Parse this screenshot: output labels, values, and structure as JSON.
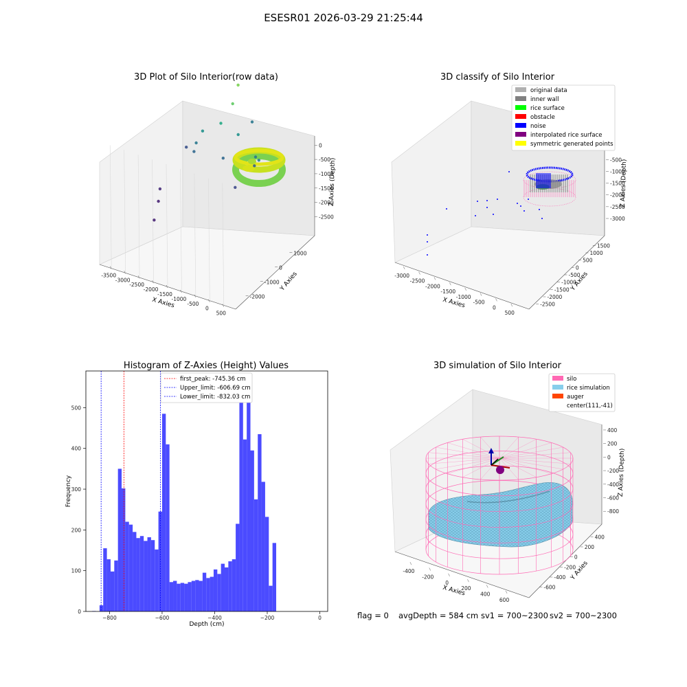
{
  "suptitle": "ESESR01 2026-03-29 21:25:44",
  "status_line": {
    "flag": "flag = 0",
    "avg": "avgDepth = 584 cm",
    "sv1": "sv1 = 700~2300",
    "sv2": "sv2 = 700~2300"
  },
  "chart_data": [
    {
      "type": "scatter",
      "title": "3D Plot of Silo Interior(row data)",
      "xlabel": "X Axies",
      "ylabel": "Y Axies",
      "zlabel": "Z Axies (Depth)",
      "x_ticks": [
        "-3500",
        "-3000",
        "-2500",
        "-2000",
        "-1500",
        "-1000",
        "-500",
        "0",
        "500"
      ],
      "y_ticks": [
        "-2000",
        "-1000",
        "0",
        "1000"
      ],
      "z_ticks": [
        "0",
        "-500",
        "-1000",
        "-1500",
        "-2000",
        "-2500"
      ],
      "xlim": [
        -3600,
        600
      ],
      "ylim": [
        -2300,
        1400
      ],
      "zlim": [
        -2800,
        100
      ],
      "colormap": "viridis",
      "dense_region": "ring of rice-surface points near x≈0, y≈0, z≈-600",
      "scattered_points": [
        {
          "x": -3300,
          "y": -200,
          "z": -2700,
          "color": "#482374"
        },
        {
          "x": -3300,
          "y": 0,
          "z": -2450,
          "color": "#482374"
        },
        {
          "x": -3350,
          "y": 150,
          "z": -2300,
          "color": "#472c7a"
        },
        {
          "x": -2900,
          "y": 700,
          "z": -1700,
          "color": "#3b528b"
        },
        {
          "x": -2400,
          "y": 300,
          "z": -1550,
          "color": "#31688e"
        },
        {
          "x": -2200,
          "y": 100,
          "z": -1300,
          "color": "#2a788e"
        },
        {
          "x": -2200,
          "y": 400,
          "z": -1200,
          "color": "#21918c"
        },
        {
          "x": -1900,
          "y": 800,
          "z": -1150,
          "color": "#22a884"
        },
        {
          "x": -1500,
          "y": 300,
          "z": -1500,
          "color": "#31688e"
        },
        {
          "x": -1300,
          "y": 700,
          "z": -1200,
          "color": "#21918c"
        },
        {
          "x": -1000,
          "y": 900,
          "z": -1000,
          "color": "#2a788e"
        },
        {
          "x": -800,
          "y": -200,
          "z": -1700,
          "color": "#3e4989"
        },
        {
          "x": -600,
          "y": 400,
          "z": -1500,
          "color": "#33638d"
        },
        {
          "x": -500,
          "y": 300,
          "z": -1300,
          "color": "#2a788e"
        },
        {
          "x": -1500,
          "y": 1000,
          "z": -500,
          "color": "#7ad151"
        },
        {
          "x": -1600,
          "y": 900,
          "z": -800,
          "color": "#5ec962"
        },
        {
          "x": -200,
          "y": 0,
          "z": -1200,
          "color": "#26828e"
        }
      ]
    },
    {
      "type": "scatter",
      "title": "3D classify of Silo Interior",
      "xlabel": "X Axies",
      "ylabel": "Y Axies",
      "zlabel": "Z Axies (Depth)",
      "x_ticks": [
        "-3000",
        "-2500",
        "-2000",
        "-1500",
        "-1000",
        "-500",
        "0",
        "500"
      ],
      "y_ticks": [
        "-2500",
        "-2000",
        "-1500",
        "-1000",
        "-500",
        "0",
        "500",
        "1000",
        "1500"
      ],
      "z_ticks": [
        "0",
        "-500",
        "-1000",
        "-1500",
        "-2000",
        "-2500",
        "-3000"
      ],
      "legend": [
        {
          "label": "original data",
          "color": "#b0b0b0"
        },
        {
          "label": "inner wall",
          "color": "#808080"
        },
        {
          "label": "rice surface",
          "color": "#00ff00"
        },
        {
          "label": "obstacle",
          "color": "#ff0000"
        },
        {
          "label": "noise",
          "color": "#0000ff"
        },
        {
          "label": "interpolated rice surface",
          "color": "#800080"
        },
        {
          "label": "symmetric generated points",
          "color": "#ffff00"
        }
      ],
      "legend_position": "upper right"
    },
    {
      "type": "bar",
      "title": "Histogram of Z-Axies (Height) Values",
      "xlabel": "Depth (cm)",
      "ylabel": "Frequency",
      "xlim": [
        -890,
        30
      ],
      "ylim": [
        0,
        590
      ],
      "x_ticks": [
        -800,
        -600,
        -400,
        -200,
        0
      ],
      "y_ticks": [
        0,
        100,
        200,
        300,
        400,
        500
      ],
      "bin_start": -880,
      "bin_width": 14,
      "values": [
        0,
        1,
        0,
        15,
        155,
        128,
        98,
        125,
        350,
        302,
        220,
        213,
        195,
        180,
        185,
        173,
        182,
        175,
        152,
        245,
        485,
        410,
        72,
        75,
        68,
        70,
        68,
        72,
        75,
        77,
        75,
        95,
        82,
        85,
        103,
        92,
        117,
        108,
        123,
        128,
        215,
        558,
        422,
        525,
        395,
        275,
        435,
        318,
        232,
        63,
        168
      ],
      "bar_color": "#4b4bff",
      "vlines": [
        {
          "label": "first_peak: -745.36 cm",
          "x": -745.36,
          "color": "#ff0000"
        },
        {
          "label": "Upper_limit: -606.69 cm",
          "x": -606.69,
          "color": "#0000ff"
        },
        {
          "label": "Lower_limit: -832.03 cm",
          "x": -832.03,
          "color": "#0000ff"
        }
      ],
      "legend_position": "upper center"
    },
    {
      "type": "surface",
      "title": "3D simulation of Silo Interior",
      "xlabel": "X Axies",
      "ylabel": "Y Axies",
      "zlabel": "Z Axies (Depth)",
      "x_ticks": [
        "-400",
        "-200",
        "0",
        "200",
        "400",
        "600"
      ],
      "y_ticks": [
        "-600",
        "-400",
        "-200",
        "0",
        "200",
        "400"
      ],
      "z_ticks": [
        "400",
        "200",
        "0",
        "-200",
        "-400",
        "-600",
        "-800"
      ],
      "legend": [
        {
          "label": "silo",
          "color": "#ff69b4"
        },
        {
          "label": "rice simulation",
          "color": "#87ceeb"
        },
        {
          "label": "auger",
          "color": "#ff4500"
        },
        {
          "label": "center(111,-41)",
          "color": ""
        }
      ],
      "legend_position": "upper right",
      "silo_color": "#ff69b4",
      "rice_color": "#87ceeb"
    }
  ]
}
